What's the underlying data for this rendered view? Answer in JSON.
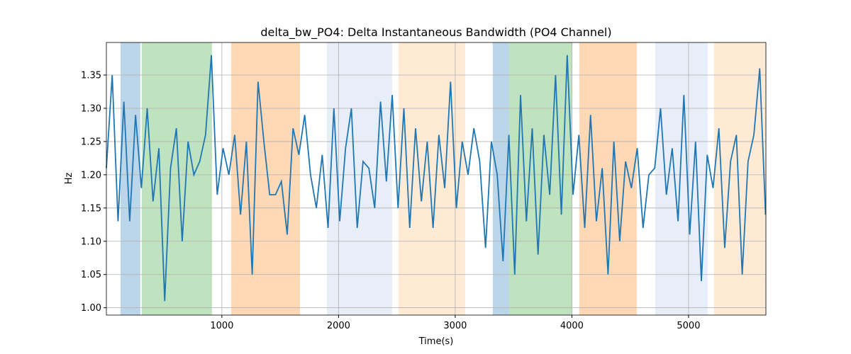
{
  "chart_data": {
    "type": "line",
    "title": "delta_bw_PO4: Delta Instantaneous Bandwidth (PO4 Channel)",
    "xlabel": "Time(s)",
    "ylabel": "Hz",
    "x": [
      10,
      60,
      110,
      160,
      210,
      260,
      310,
      360,
      410,
      460,
      510,
      560,
      610,
      660,
      710,
      760,
      810,
      860,
      910,
      960,
      1010,
      1060,
      1110,
      1160,
      1210,
      1260,
      1310,
      1360,
      1410,
      1460,
      1510,
      1560,
      1610,
      1660,
      1710,
      1760,
      1810,
      1860,
      1910,
      1960,
      2010,
      2060,
      2110,
      2160,
      2210,
      2260,
      2310,
      2360,
      2410,
      2460,
      2510,
      2560,
      2610,
      2660,
      2710,
      2760,
      2810,
      2860,
      2910,
      2960,
      3010,
      3060,
      3110,
      3160,
      3210,
      3260,
      3310,
      3360,
      3410,
      3460,
      3510,
      3560,
      3610,
      3660,
      3710,
      3760,
      3810,
      3860,
      3910,
      3960,
      4010,
      4060,
      4110,
      4160,
      4210,
      4260,
      4310,
      4360,
      4410,
      4460,
      4510,
      4560,
      4610,
      4660,
      4710,
      4760,
      4810,
      4860,
      4910,
      4960,
      5010,
      5060,
      5110,
      5160,
      5210,
      5260,
      5310,
      5360,
      5410,
      5460,
      5510,
      5560,
      5610,
      5660
    ],
    "series": [
      {
        "name": "delta_bw_PO4",
        "color": "#1f77b4",
        "values": [
          1.21,
          1.35,
          1.13,
          1.31,
          1.13,
          1.29,
          1.18,
          1.3,
          1.16,
          1.24,
          1.01,
          1.21,
          1.27,
          1.1,
          1.25,
          1.2,
          1.22,
          1.26,
          1.38,
          1.17,
          1.24,
          1.2,
          1.26,
          1.14,
          1.25,
          1.05,
          1.34,
          1.25,
          1.17,
          1.17,
          1.19,
          1.11,
          1.27,
          1.23,
          1.29,
          1.2,
          1.15,
          1.23,
          1.12,
          1.3,
          1.13,
          1.24,
          1.3,
          1.12,
          1.22,
          1.21,
          1.15,
          1.31,
          1.19,
          1.32,
          1.15,
          1.3,
          1.12,
          1.27,
          1.16,
          1.25,
          1.12,
          1.26,
          1.18,
          1.34,
          1.15,
          1.25,
          1.2,
          1.27,
          1.22,
          1.09,
          1.25,
          1.2,
          1.07,
          1.26,
          1.05,
          1.32,
          1.13,
          1.27,
          1.08,
          1.26,
          1.17,
          1.35,
          1.14,
          1.38,
          1.17,
          1.26,
          1.12,
          1.29,
          1.13,
          1.21,
          1.05,
          1.25,
          1.1,
          1.22,
          1.18,
          1.24,
          1.12,
          1.2,
          1.21,
          1.3,
          1.17,
          1.24,
          1.13,
          1.32,
          1.11,
          1.25,
          1.04,
          1.23,
          1.18,
          1.27,
          1.09,
          1.22,
          1.26,
          1.05,
          1.22,
          1.26,
          1.36,
          1.14
        ]
      }
    ],
    "spans": [
      {
        "start": 131,
        "end": 301,
        "color": "#1f77b4",
        "alpha": 0.3
      },
      {
        "start": 313,
        "end": 915,
        "color": "#2ca02c",
        "alpha": 0.3
      },
      {
        "start": 1079,
        "end": 1669,
        "color": "#ff7f0e",
        "alpha": 0.3
      },
      {
        "start": 1900,
        "end": 2459,
        "color": "#aec7e8",
        "alpha": 0.3
      },
      {
        "start": 2514,
        "end": 3085,
        "color": "#ffbb78",
        "alpha": 0.3
      },
      {
        "start": 3322,
        "end": 3462,
        "color": "#1f77b4",
        "alpha": 0.3
      },
      {
        "start": 3462,
        "end": 4003,
        "color": "#2ca02c",
        "alpha": 0.3
      },
      {
        "start": 4063,
        "end": 4556,
        "color": "#ff7f0e",
        "alpha": 0.3
      },
      {
        "start": 4714,
        "end": 5164,
        "color": "#aec7e8",
        "alpha": 0.3
      },
      {
        "start": 5219,
        "end": 5663,
        "color": "#ffbb78",
        "alpha": 0.3
      }
    ],
    "xlim": [
      10,
      5663
    ],
    "ylim": [
      0.989,
      1.399
    ],
    "xticks": [
      1000,
      2000,
      3000,
      4000,
      5000
    ],
    "yticks": [
      {
        "value": 1.0,
        "label": "1.00"
      },
      {
        "value": 1.05,
        "label": "1.05"
      },
      {
        "value": 1.1,
        "label": "1.10"
      },
      {
        "value": 1.15,
        "label": "1.15"
      },
      {
        "value": 1.2,
        "label": "1.20"
      },
      {
        "value": 1.25,
        "label": "1.25"
      },
      {
        "value": 1.3,
        "label": "1.30"
      },
      {
        "value": 1.35,
        "label": "1.35"
      }
    ],
    "grid": true
  }
}
